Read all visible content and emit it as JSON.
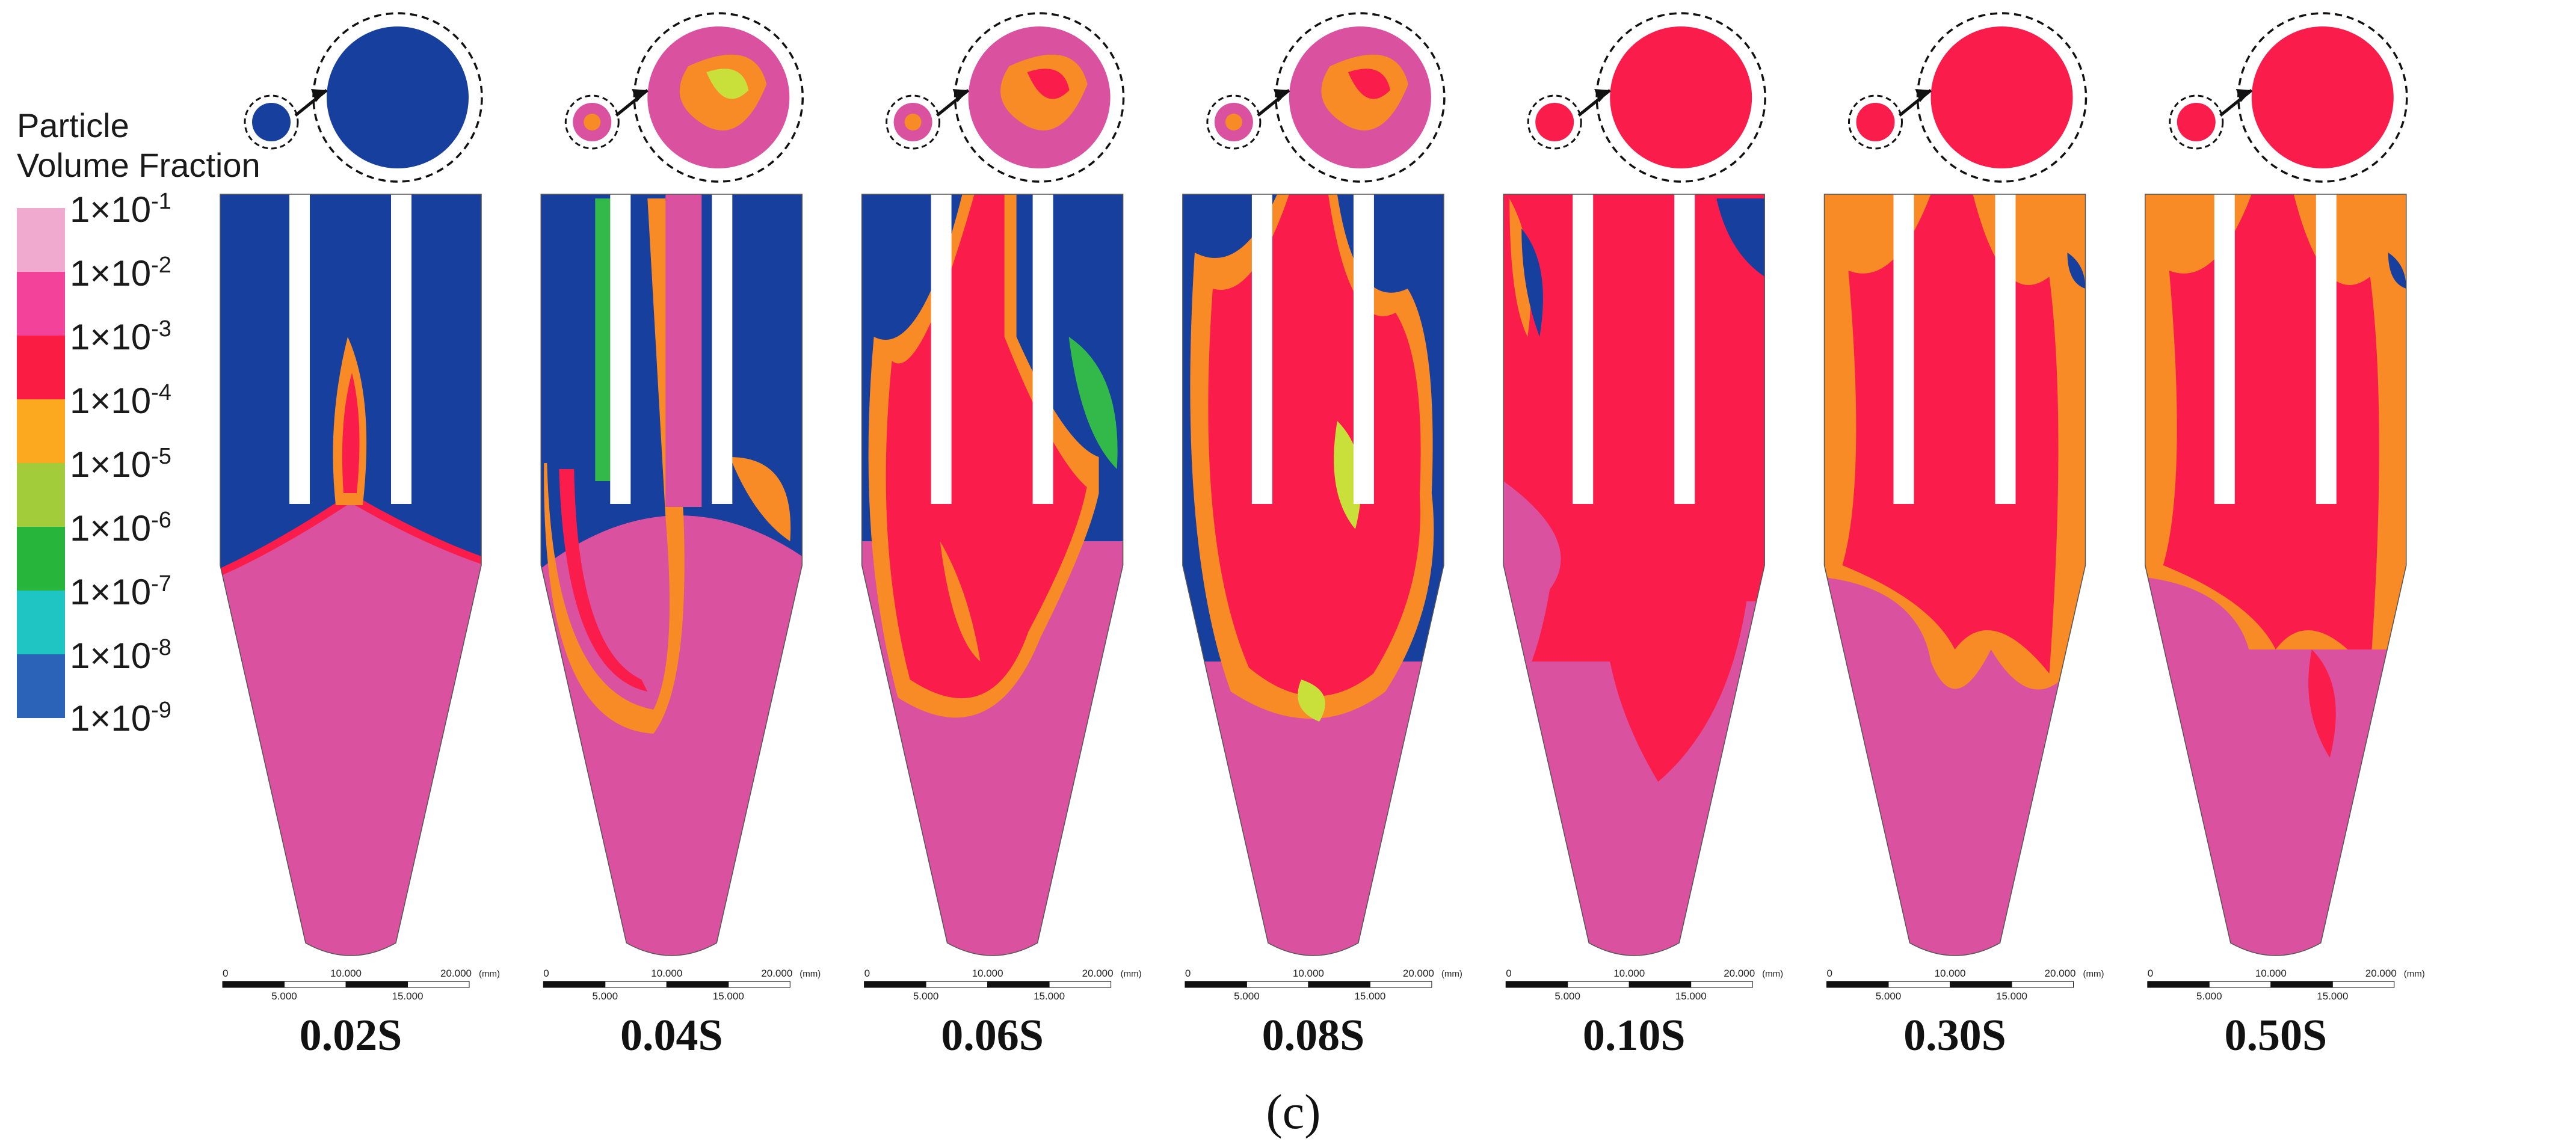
{
  "legend": {
    "title_line1": "Particle",
    "title_line2": "Volume Fraction",
    "levels": [
      {
        "label": "1×10",
        "exp": "-1",
        "color": "#f0a9cf"
      },
      {
        "label": "1×10",
        "exp": "-2",
        "color": "#f2429a"
      },
      {
        "label": "1×10",
        "exp": "-3",
        "color": "#fb1c44"
      },
      {
        "label": "1×10",
        "exp": "-4",
        "color": "#fda91f"
      },
      {
        "label": "1×10",
        "exp": "-5",
        "color": "#a2cc3a"
      },
      {
        "label": "1×10",
        "exp": "-6",
        "color": "#28b53c"
      },
      {
        "label": "1×10",
        "exp": "-7",
        "color": "#1ec5c2"
      },
      {
        "label": "1×10",
        "exp": "-8",
        "color": "#2a63b8"
      },
      {
        "label": "1×10",
        "exp": "-9",
        "color": ""
      }
    ]
  },
  "colors": {
    "blue": "#173f9e",
    "pink": "#da519f",
    "red": "#fa1d4b",
    "orange": "#f88b25",
    "yellow": "#c9e03a",
    "green": "#33b94a",
    "cyan": "#1ec8c0"
  },
  "scale_bar": {
    "top_ticks": [
      "0",
      "10.000",
      "20.000"
    ],
    "unit": "(mm)",
    "bottom_ticks": [
      "5.000",
      "15.000"
    ]
  },
  "frames": [
    {
      "time": "0.02S",
      "state": 0
    },
    {
      "time": "0.04S",
      "state": 1
    },
    {
      "time": "0.06S",
      "state": 2
    },
    {
      "time": "0.08S",
      "state": 3
    },
    {
      "time": "0.10S",
      "state": 4
    },
    {
      "time": "0.30S",
      "state": 5
    },
    {
      "time": "0.50S",
      "state": 6
    }
  ],
  "caption": "(c)"
}
